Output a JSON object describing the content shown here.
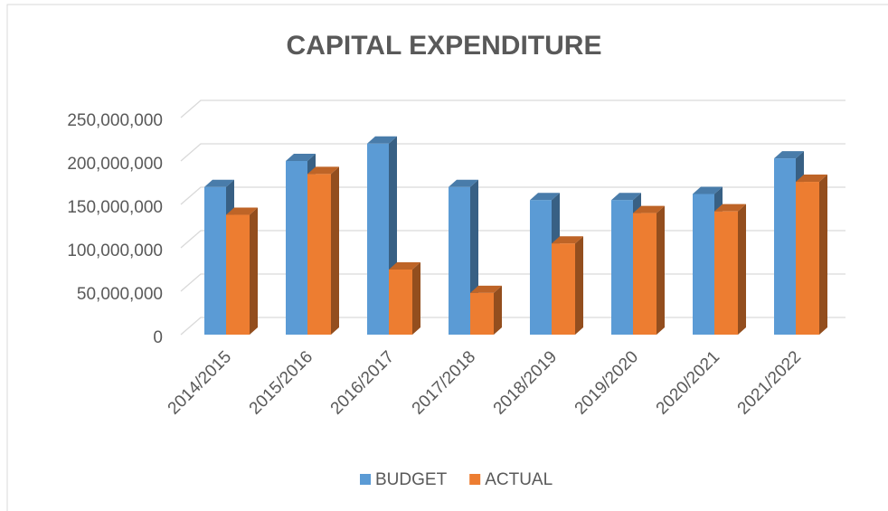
{
  "chart_data": {
    "type": "bar3d",
    "title": "CAPITAL EXPENDITURE",
    "categories": [
      "2014/2015",
      "2015/2016",
      "2016/2017",
      "2017/2018",
      "2018/2019",
      "2019/2020",
      "2020/2021",
      "2021/2022"
    ],
    "series": [
      {
        "name": "BUDGET",
        "color": "#5b9bd5",
        "values": [
          170000000,
          200000000,
          220000000,
          170000000,
          155000000,
          155000000,
          162000000,
          203000000
        ]
      },
      {
        "name": "ACTUAL",
        "color": "#ed7d31",
        "values": [
          138000000,
          185000000,
          75000000,
          48000000,
          105000000,
          140000000,
          142000000,
          176000000
        ]
      }
    ],
    "ylim": [
      0,
      250000000
    ],
    "yticks": [
      0,
      {
        "value": 50000000,
        "label": "50,000,000"
      },
      {
        "value": 100000000,
        "label": "100,000,000"
      },
      {
        "value": 150000000,
        "label": "150,000,000"
      },
      {
        "value": 200000000,
        "label": "200,000,000"
      },
      {
        "value": 250000000,
        "label": "250,000,000"
      }
    ],
    "grid": true,
    "legend": "bottom"
  }
}
